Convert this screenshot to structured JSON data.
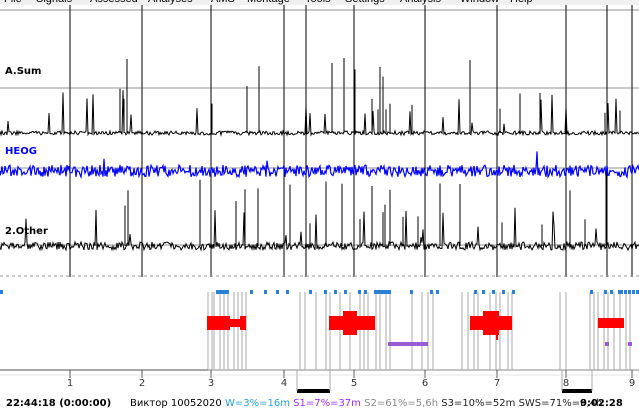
{
  "menu": {
    "items": [
      "File",
      "Signals",
      "Assessed",
      "Analyses",
      "AMS",
      "Montage",
      "Tools",
      "Settings",
      "Analysis",
      "Window",
      "Help"
    ]
  },
  "channels": [
    {
      "label": "A.Sum",
      "color": "#000000"
    },
    {
      "label": "HEOG",
      "color": "#0000ff"
    },
    {
      "label": "2.Other",
      "color": "#000000"
    }
  ],
  "timeline": {
    "hour_marks": [
      "1",
      "2",
      "3",
      "4",
      "5",
      "6",
      "7",
      "8",
      "9"
    ]
  },
  "status": {
    "start_time": "22:44:18 (0:00:00)",
    "end_time": "9:02:28",
    "subject": "Виктор 10052020",
    "stats": [
      {
        "text": "W=3%=16m",
        "color": "#2a9fd6"
      },
      {
        "text": "S1=7%=37m",
        "color": "#9b30ff"
      },
      {
        "text": "S2=61%=5,6h",
        "color": "#888888"
      },
      {
        "text": "S3=10%=52m",
        "color": "#222222"
      },
      {
        "text": "SWS=71%=6,4h",
        "color": "#222222"
      }
    ]
  },
  "colors": {
    "wake": "#2a7fd6",
    "rem": "#ff0000",
    "s1": "#9b59d6",
    "s2": "#888888",
    "s3": "#000000",
    "grid": "#888888",
    "heog": "#0000ff"
  }
}
